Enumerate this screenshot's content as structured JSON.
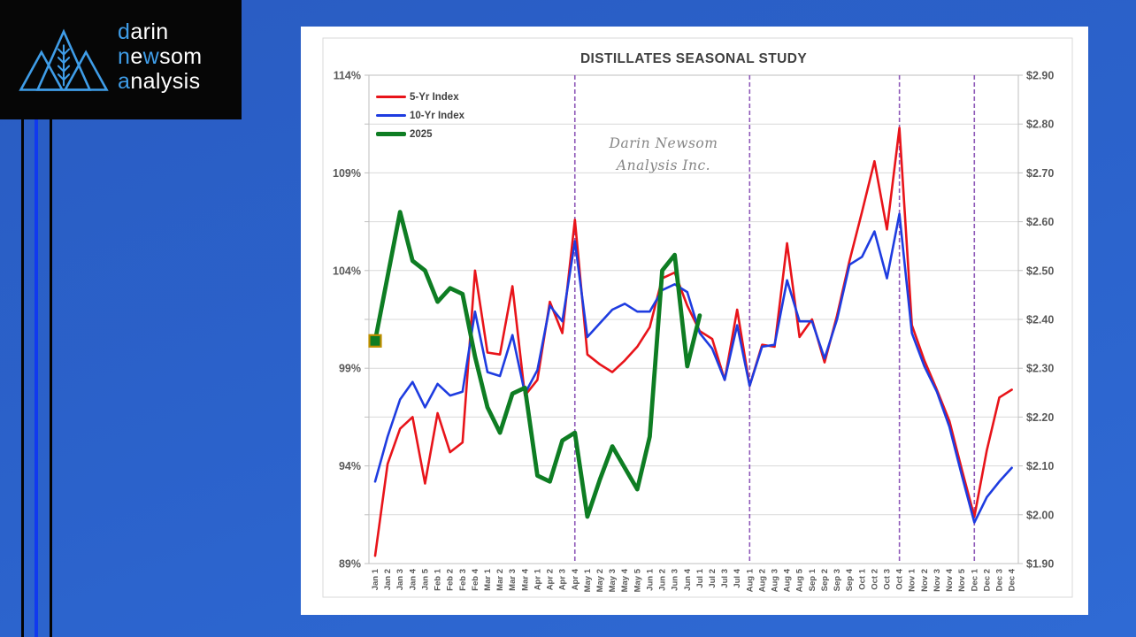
{
  "logo": {
    "accent_color": "#3f9de8",
    "lines": [
      [
        {
          "t": "d",
          "blue": true
        },
        {
          "t": "arin",
          "blue": false
        }
      ],
      [
        {
          "t": "n",
          "blue": true
        },
        {
          "t": "e",
          "blue": false
        },
        {
          "t": "w",
          "blue": true
        },
        {
          "t": "som",
          "blue": false
        }
      ],
      [
        {
          "t": "a",
          "blue": true
        },
        {
          "t": "nalysis",
          "blue": false
        }
      ]
    ]
  },
  "chart_data": {
    "type": "line",
    "title": "DISTILLATES SEASONAL STUDY",
    "watermark": {
      "line1": "Darin Newsom",
      "line2": "Analysis Inc."
    },
    "categories": [
      "Jan 1",
      "Jan 2",
      "Jan 3",
      "Jan 4",
      "Jan 5",
      "Feb 1",
      "Feb 2",
      "Feb 3",
      "Feb 4",
      "Mar 1",
      "Mar 2",
      "Mar 3",
      "Mar 4",
      "Apr 1",
      "Apr 2",
      "Apr 3",
      "Apr 4",
      "May 1",
      "May 2",
      "May 3",
      "May 4",
      "May 5",
      "Jun 1",
      "Jun 2",
      "Jun 3",
      "Jun 4",
      "Jul 1",
      "Jul 2",
      "Jul 3",
      "Jul 4",
      "Aug 1",
      "Aug 2",
      "Aug 3",
      "Aug 4",
      "Aug 5",
      "Sep 1",
      "Sep 2",
      "Sep 3",
      "Sep 4",
      "Oct 1",
      "Oct 2",
      "Oct 3",
      "Oct 4",
      "Nov 1",
      "Nov 2",
      "Nov 3",
      "Nov 4",
      "Nov 5",
      "Dec 1",
      "Dec 2",
      "Dec 3",
      "Dec 4"
    ],
    "left_axis": {
      "unit": "%",
      "min": 89,
      "max": 114,
      "labels": [
        "89%",
        "94%",
        "99%",
        "104%",
        "109%",
        "114%"
      ]
    },
    "right_axis": {
      "unit": "$",
      "min": 1.9,
      "max": 2.9,
      "labels": [
        "$1.90",
        "$2.00",
        "$2.10",
        "$2.20",
        "$2.30",
        "$2.40",
        "$2.50",
        "$2.60",
        "$2.70",
        "$2.80",
        "$2.90"
      ]
    },
    "grid": true,
    "legend_position": "top-left-inside",
    "vlines": {
      "color": "#8e59b8",
      "style": "dashed",
      "at": [
        "Apr 4",
        "Aug 1",
        "Oct 4",
        "Dec 1"
      ]
    },
    "series": [
      {
        "name": "5-Yr Index",
        "color": "#e8141a",
        "width": 2.6,
        "values": [
          89.4,
          94.1,
          95.9,
          96.5,
          93.1,
          96.7,
          94.7,
          95.2,
          104.0,
          99.8,
          99.7,
          103.2,
          97.6,
          98.4,
          102.4,
          100.8,
          106.6,
          99.7,
          99.2,
          98.8,
          99.4,
          100.1,
          101.1,
          103.6,
          103.9,
          102.2,
          100.9,
          100.5,
          98.4,
          102.0,
          98.1,
          100.2,
          100.1,
          105.4,
          100.6,
          101.5,
          99.3,
          101.7,
          104.5,
          107.0,
          109.6,
          106.1,
          111.3,
          101.2,
          99.4,
          97.9,
          96.3,
          93.8,
          91.4,
          94.8,
          97.5,
          97.9
        ]
      },
      {
        "name": "10-Yr Index",
        "color": "#1e3ce0",
        "width": 2.6,
        "values": [
          93.2,
          95.5,
          97.4,
          98.3,
          97.0,
          98.2,
          97.6,
          97.8,
          101.9,
          98.8,
          98.6,
          100.7,
          97.7,
          98.9,
          102.2,
          101.4,
          105.5,
          100.6,
          101.3,
          102.0,
          102.3,
          101.9,
          101.9,
          103.0,
          103.3,
          102.9,
          100.8,
          100.0,
          98.4,
          101.2,
          98.1,
          100.1,
          100.2,
          103.5,
          101.4,
          101.4,
          99.5,
          101.5,
          104.3,
          104.7,
          106.0,
          103.6,
          106.9,
          100.8,
          99.1,
          97.8,
          96.0,
          93.5,
          91.1,
          92.4,
          93.2,
          93.9
        ]
      },
      {
        "name": "2025",
        "color": "#0e7d23",
        "width": 4.8,
        "first_point_marker": {
          "shape": "square",
          "size": 13,
          "border_color": "#bf8f00"
        },
        "values": [
          100.4,
          103.7,
          107.0,
          104.5,
          104.0,
          102.4,
          103.1,
          102.8,
          99.6,
          97.0,
          95.7,
          97.7,
          98.0,
          93.5,
          93.2,
          95.3,
          95.7,
          91.4,
          93.3,
          95.0,
          93.9,
          92.8,
          95.5,
          104.0,
          104.8,
          99.1,
          101.7,
          null,
          null,
          null,
          null,
          null,
          null,
          null,
          null,
          null,
          null,
          null,
          null,
          null,
          null,
          null,
          null,
          null,
          null,
          null,
          null,
          null,
          null,
          null,
          null,
          null
        ]
      }
    ]
  }
}
